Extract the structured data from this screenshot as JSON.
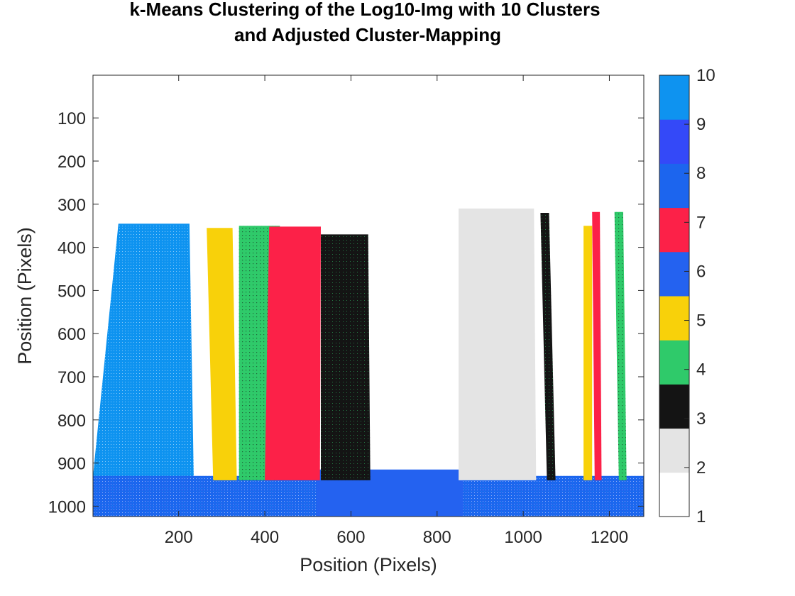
{
  "chart_data": {
    "type": "heatmap",
    "title_lines": [
      "k-Means Clustering of the Log10-Img with 10 Clusters",
      "and Adjusted Cluster-Mapping"
    ],
    "xlabel": "Position (Pixels)",
    "ylabel": "Position (Pixels)",
    "xlim": [
      1,
      1280
    ],
    "ylim": [
      1,
      1024
    ],
    "y_reversed": true,
    "xticks": [
      200,
      400,
      600,
      800,
      1000,
      1200
    ],
    "yticks": [
      100,
      200,
      300,
      400,
      500,
      600,
      700,
      800,
      900,
      1000
    ],
    "colorbar": {
      "range": [
        1,
        10
      ],
      "ticks": [
        1,
        2,
        3,
        4,
        5,
        6,
        7,
        8,
        9,
        10
      ],
      "colors": [
        "#ffffff",
        "#e4e4e4",
        "#141414",
        "#2fca6a",
        "#f8d10a",
        "#2462f0",
        "#fc2148",
        "#1c65ee",
        "#3449f8",
        "#0e93f0"
      ]
    },
    "regions": [
      {
        "cluster": 10,
        "polygon": [
          [
            60,
            345
          ],
          [
            225,
            345
          ],
          [
            235,
            940
          ],
          [
            0,
            940
          ]
        ]
      },
      {
        "cluster": 8,
        "polygon": [
          [
            0,
            930
          ],
          [
            1280,
            930
          ],
          [
            1280,
            1024
          ],
          [
            0,
            1024
          ]
        ]
      },
      {
        "cluster": 6,
        "polygon": [
          [
            520,
            915
          ],
          [
            860,
            915
          ],
          [
            860,
            1024
          ],
          [
            520,
            1024
          ]
        ]
      },
      {
        "cluster": 5,
        "polygon": [
          [
            265,
            355
          ],
          [
            325,
            355
          ],
          [
            335,
            940
          ],
          [
            280,
            940
          ]
        ]
      },
      {
        "cluster": 4,
        "polygon": [
          [
            340,
            350
          ],
          [
            435,
            350
          ],
          [
            425,
            940
          ],
          [
            340,
            940
          ]
        ]
      },
      {
        "cluster": 7,
        "polygon": [
          [
            410,
            352
          ],
          [
            530,
            352
          ],
          [
            528,
            940
          ],
          [
            400,
            940
          ]
        ]
      },
      {
        "cluster": 3,
        "polygon": [
          [
            530,
            370
          ],
          [
            640,
            370
          ],
          [
            645,
            940
          ],
          [
            530,
            940
          ]
        ]
      },
      {
        "cluster": 2,
        "polygon": [
          [
            850,
            310
          ],
          [
            1025,
            310
          ],
          [
            1030,
            940
          ],
          [
            850,
            940
          ]
        ]
      },
      {
        "cluster": 3,
        "polygon": [
          [
            1040,
            320
          ],
          [
            1060,
            320
          ],
          [
            1075,
            940
          ],
          [
            1055,
            940
          ]
        ]
      },
      {
        "cluster": 5,
        "polygon": [
          [
            1140,
            350
          ],
          [
            1160,
            350
          ],
          [
            1160,
            940
          ],
          [
            1140,
            940
          ]
        ]
      },
      {
        "cluster": 7,
        "polygon": [
          [
            1160,
            318
          ],
          [
            1178,
            318
          ],
          [
            1182,
            940
          ],
          [
            1166,
            940
          ]
        ]
      },
      {
        "cluster": 4,
        "polygon": [
          [
            1212,
            318
          ],
          [
            1232,
            318
          ],
          [
            1240,
            940
          ],
          [
            1222,
            940
          ]
        ]
      }
    ]
  }
}
